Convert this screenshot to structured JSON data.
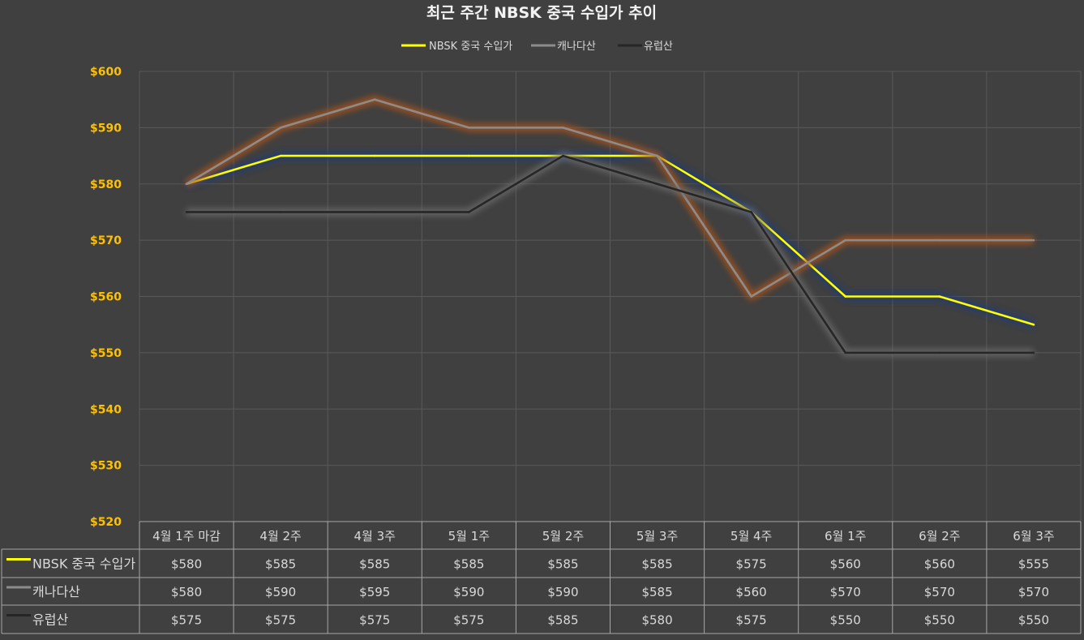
{
  "chart_data": {
    "type": "line",
    "title": "최근 주간 NBSK 중국 수입가 추이",
    "categories": [
      "4월 1주 마감",
      "4월 2주",
      "4월 3주",
      "5월 1주",
      "5월 2주",
      "5월 3주",
      "5월 4주",
      "6월 1주",
      "6월 2주",
      "6월 3주"
    ],
    "series": [
      {
        "name": "NBSK 중국 수입가",
        "color": "#ffff00",
        "glow": "#1f3a7a",
        "values": [
          580,
          585,
          585,
          585,
          585,
          585,
          575,
          560,
          560,
          555
        ]
      },
      {
        "name": "캐나다산",
        "color": "#8c8c8c",
        "glow": "#a8521a",
        "values": [
          580,
          590,
          595,
          590,
          590,
          585,
          560,
          570,
          570,
          570
        ]
      },
      {
        "name": "유럽산",
        "color": "#262626",
        "glow": "#6b6b6b",
        "values": [
          575,
          575,
          575,
          575,
          585,
          580,
          575,
          550,
          550,
          550
        ]
      }
    ],
    "ylim": [
      520,
      600
    ],
    "y_step": 10,
    "y_tick_prefix": "$",
    "value_prefix": "$",
    "y_tick_color": "#ffc000",
    "grid": true,
    "legend": "top-center",
    "data_table": true
  }
}
